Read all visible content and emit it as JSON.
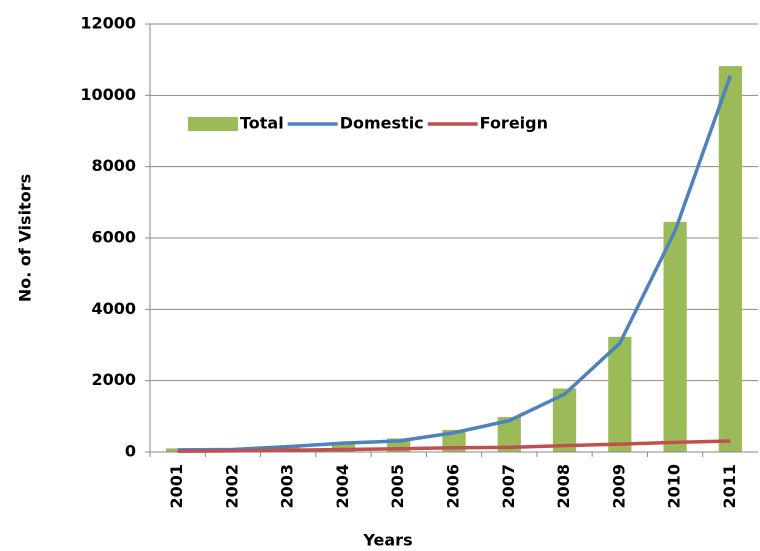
{
  "chart_data": {
    "type": "bar-line",
    "categories": [
      "2001",
      "2002",
      "2003",
      "2004",
      "2005",
      "2006",
      "2007",
      "2008",
      "2009",
      "2010",
      "2011"
    ],
    "series": [
      {
        "name": "Total",
        "type": "bar",
        "color": "#9bbb59",
        "values": [
          100,
          80,
          150,
          280,
          380,
          620,
          980,
          1780,
          3230,
          6450,
          10820
        ]
      },
      {
        "name": "Domestic",
        "type": "line",
        "color": "#4f81bd",
        "values": [
          60,
          70,
          150,
          250,
          310,
          540,
          880,
          1620,
          3050,
          6200,
          10550
        ]
      },
      {
        "name": "Foreign",
        "type": "line",
        "color": "#c0504d",
        "values": [
          20,
          30,
          50,
          70,
          90,
          120,
          130,
          180,
          220,
          270,
          310
        ]
      }
    ],
    "x_label": "Years",
    "y_label": "No. of Visitors",
    "ylim": [
      0,
      12000
    ],
    "yticks": [
      0,
      2000,
      4000,
      6000,
      8000,
      10000,
      12000
    ],
    "grid": true,
    "legend": "top-left"
  }
}
